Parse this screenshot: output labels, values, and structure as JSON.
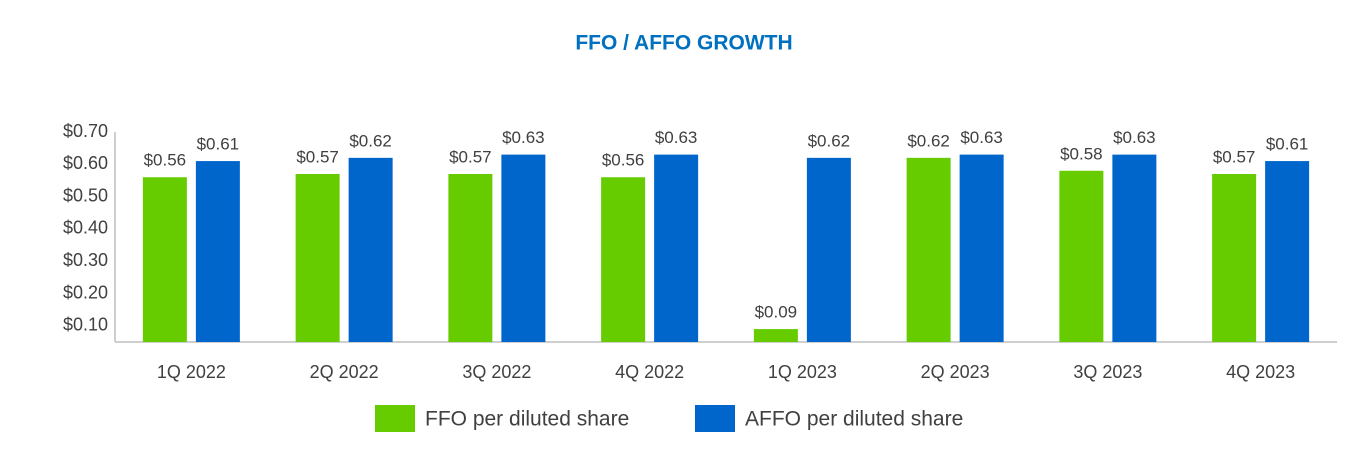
{
  "chart_data": {
    "type": "bar",
    "title": "FFO / AFFO GROWTH",
    "categories": [
      "1Q 2022",
      "2Q 2022",
      "3Q 2022",
      "4Q 2022",
      "1Q 2023",
      "2Q 2023",
      "3Q 2023",
      "4Q 2023"
    ],
    "series": [
      {
        "name": "FFO per diluted share",
        "color": "#66cc00",
        "values": [
          0.56,
          0.57,
          0.57,
          0.56,
          0.09,
          0.62,
          0.58,
          0.57
        ],
        "value_labels": [
          "$0.56",
          "$0.57",
          "$0.57",
          "$0.56",
          "$0.09",
          "$0.62",
          "$0.58",
          "$0.57"
        ]
      },
      {
        "name": "AFFO per diluted share",
        "color": "#0066cc",
        "values": [
          0.61,
          0.62,
          0.63,
          0.63,
          0.62,
          0.63,
          0.63,
          0.61
        ],
        "value_labels": [
          "$0.61",
          "$0.62",
          "$0.63",
          "$0.63",
          "$0.62",
          "$0.63",
          "$0.63",
          "$0.61"
        ]
      }
    ],
    "ylim": [
      0.05,
      0.7
    ],
    "yticks": [
      {
        "value": 0.1,
        "label": "$0.10"
      },
      {
        "value": 0.2,
        "label": "$0.20"
      },
      {
        "value": 0.3,
        "label": "$0.30"
      },
      {
        "value": 0.4,
        "label": "$0.40"
      },
      {
        "value": 0.5,
        "label": "$0.50"
      },
      {
        "value": 0.6,
        "label": "$0.60"
      },
      {
        "value": 0.7,
        "label": "$0.70"
      }
    ],
    "grid": false,
    "legend": "bottom"
  }
}
